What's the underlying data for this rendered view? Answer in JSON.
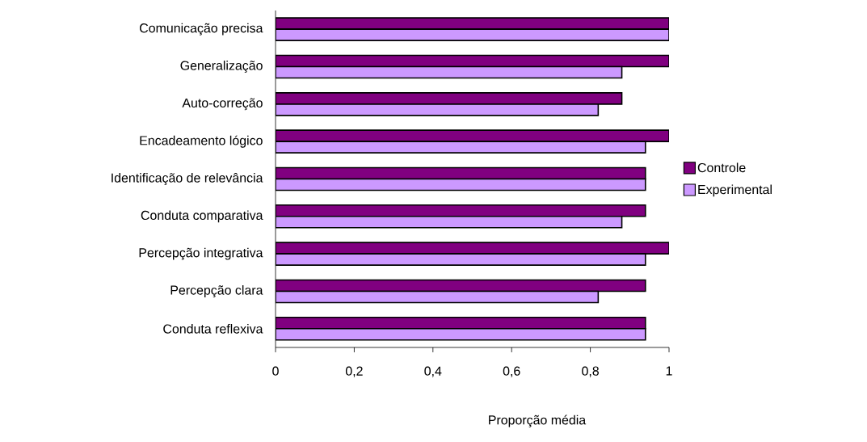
{
  "chart_data": {
    "type": "bar",
    "orientation": "horizontal",
    "xlabel": "Proporção média",
    "categories": [
      "Comunicação precisa",
      "Generalização",
      "Auto-correção",
      "Encadeamento lógico",
      "Identificação de relevância",
      "Conduta comparativa",
      "Percepção integrativa",
      "Percepção clara",
      "Conduta reflexiva"
    ],
    "series": [
      {
        "name": "Controle",
        "color": "#800080",
        "values": [
          1,
          1,
          0.88,
          1,
          0.94,
          0.94,
          1,
          0.94,
          0.94
        ]
      },
      {
        "name": "Experimental",
        "color": "#cc99ff",
        "values": [
          1,
          0.88,
          0.82,
          0.94,
          0.94,
          0.88,
          0.94,
          0.82,
          0.94
        ]
      }
    ],
    "xlim": [
      0,
      1
    ],
    "xticks": [
      0,
      {
        "value": 0.2,
        "label": "0,2"
      },
      {
        "value": 0.4,
        "label": "0,4"
      },
      {
        "value": 0.6,
        "label": "0,6"
      },
      {
        "value": 0.8,
        "label": "0,8"
      },
      1
    ],
    "legend": "right"
  }
}
